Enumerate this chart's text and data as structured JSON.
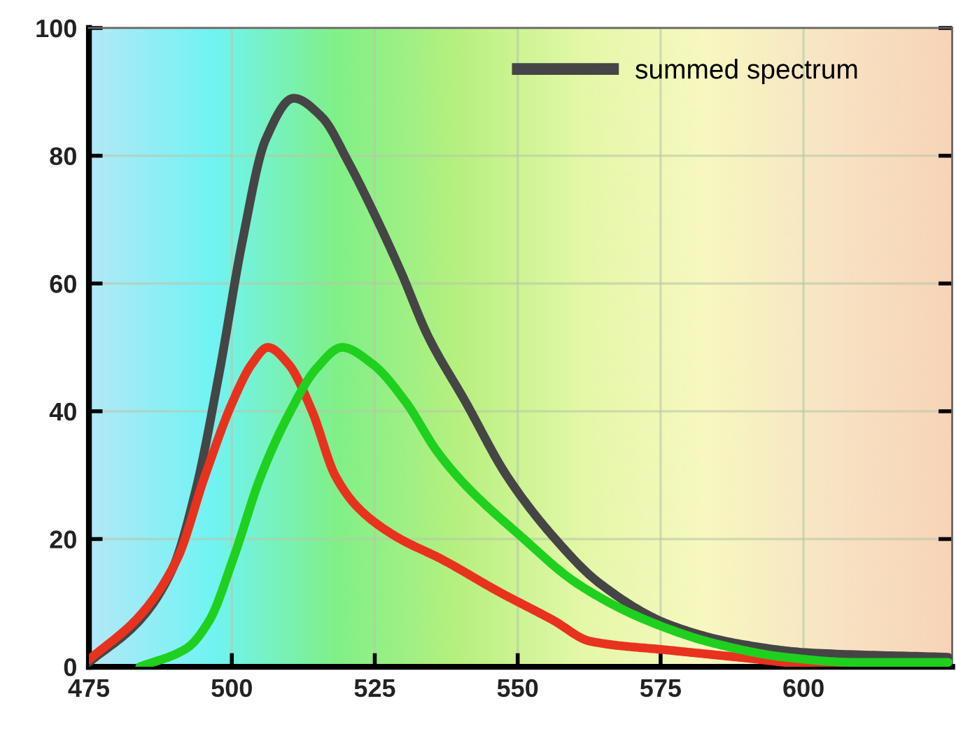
{
  "chart_data": {
    "type": "line",
    "xlim": [
      475,
      626
    ],
    "xticks": [
      475,
      500,
      525,
      550,
      575,
      600
    ],
    "ylim": [
      0,
      100
    ],
    "yticks": [
      0,
      20,
      40,
      60,
      80,
      100
    ],
    "grid": true,
    "legend": "top right",
    "line_style": "solid",
    "marker": "none",
    "series": [
      {
        "name": "summed spectrum",
        "color": "#454545",
        "x": [
          475,
          483.9,
          489.6,
          493.7,
          497.8,
          501.8,
          505.9,
          510.8,
          515.7,
          520.5,
          524.6,
          529.5,
          534.3,
          540.8,
          548.1,
          556.2,
          564.3,
          576.5,
          588.7,
          600.9,
          625.3
        ],
        "values": [
          0.7,
          7.3,
          15.3,
          27.7,
          46,
          66.4,
          82.5,
          89,
          86.1,
          78.8,
          71.5,
          62,
          51.8,
          41.6,
          29.9,
          20.4,
          13.1,
          6.6,
          3.6,
          2.2,
          1.5
        ]
      },
      {
        "color": "#e8321e",
        "x": [
          475,
          483.9,
          490.4,
          495.3,
          500.2,
          503.5,
          506.3,
          509.9,
          514,
          518.1,
          522.2,
          528.7,
          536.8,
          546.8,
          556.2,
          562.7,
          576.5,
          588.7,
          600.9,
          613
        ],
        "values": [
          1.1,
          8,
          16.8,
          29.9,
          41.6,
          47.4,
          50,
          47.4,
          40.1,
          29.9,
          24.8,
          20.4,
          16.8,
          11.7,
          7.3,
          4,
          2.6,
          1.5,
          0.4,
          0
        ]
      },
      {
        "color": "#1fd01f",
        "x": [
          483.9,
          492.1,
          496.1,
          500.2,
          505.1,
          509.9,
          514.8,
          519.3,
          524.6,
          530.3,
          536,
          540.8,
          550.6,
          560.3,
          572.5,
          584.7,
          596.8,
          609,
          625.3
        ],
        "values": [
          0,
          2.9,
          7.3,
          16.8,
          29.9,
          39.4,
          46.7,
          50,
          47.4,
          41.6,
          33.6,
          28.5,
          20.4,
          13.1,
          7.3,
          3.6,
          1.5,
          0.7,
          0.7
        ]
      }
    ]
  }
}
